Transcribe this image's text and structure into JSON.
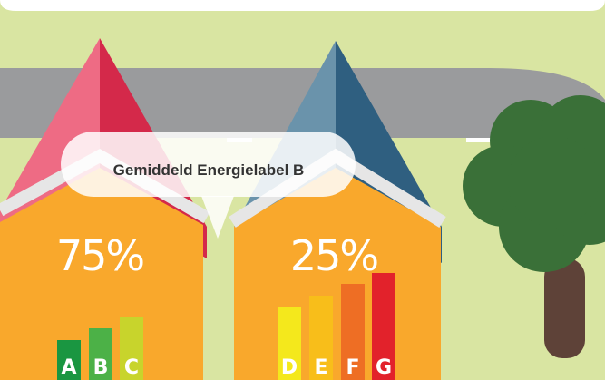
{
  "tooltip": {
    "text": "Gemiddeld Energielabel B"
  },
  "houses": [
    {
      "share": "75%",
      "labels": [
        "A",
        "B",
        "C"
      ]
    },
    {
      "share": "25%",
      "labels": [
        "D",
        "E",
        "F",
        "G"
      ]
    }
  ]
}
